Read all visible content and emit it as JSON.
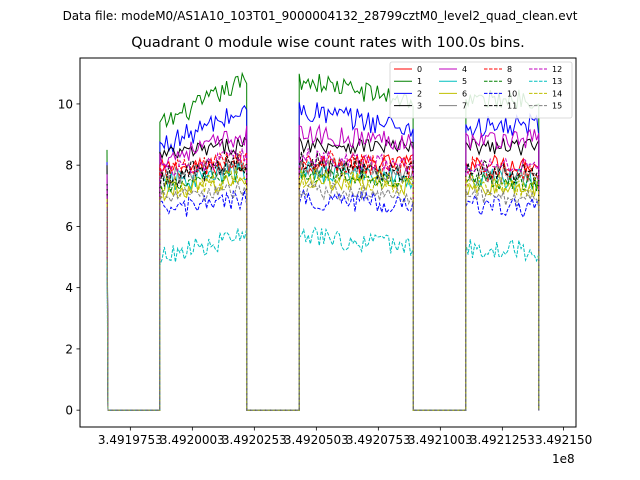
{
  "chart_data": {
    "type": "line",
    "suptitle": "Data file: modeM0/AS1A10_103T01_9000004132_28799cztM0_level2_quad_clean.evt",
    "title": "Quadrant 0 module wise count rates with 100.0s bins.",
    "xlabel": "",
    "ylabel": "",
    "x_offset_label": "1e8",
    "xlim": [
      3.491955,
      3.492155
    ],
    "ylim": [
      -0.55,
      11.5
    ],
    "x_ticks": [
      3.4919753,
      3.4920003,
      3.4920253,
      3.4920503,
      3.4920753,
      3.4921003,
      3.4921253,
      3.49215
    ],
    "x_tick_labels": [
      "3.4919753",
      "3.4920003",
      "3.4920253",
      "3.4920503",
      "3.4920753",
      "3.4921003",
      "3.4921253",
      "3.492150"
    ],
    "y_ticks": [
      0,
      2,
      4,
      6,
      8,
      10
    ],
    "y_tick_labels": [
      "0",
      "2",
      "4",
      "6",
      "8",
      "10"
    ],
    "legend_position": "top-right",
    "segments": [
      {
        "x_start": 3.4919659,
        "x_end": 3.4919663,
        "kind": "spike"
      },
      {
        "x_start": 3.4919663,
        "x_end": 3.4919872,
        "kind": "gap"
      },
      {
        "x_start": 3.4919872,
        "x_end": 3.4920222,
        "kind": "data"
      },
      {
        "x_start": 3.4920222,
        "x_end": 3.4920434,
        "kind": "gap"
      },
      {
        "x_start": 3.4920434,
        "x_end": 3.4920893,
        "kind": "data"
      },
      {
        "x_start": 3.4920893,
        "x_end": 3.4921106,
        "kind": "gap"
      },
      {
        "x_start": 3.4921106,
        "x_end": 3.49214,
        "kind": "data"
      }
    ],
    "series": [
      {
        "name": "0",
        "color": "#ff0000",
        "dash": "solid",
        "levels": [
          7.9,
          8.0,
          8.1,
          8.0
        ],
        "spike": 7.6
      },
      {
        "name": "1",
        "color": "#008000",
        "dash": "solid",
        "levels": [
          9.3,
          10.8,
          10.1,
          10.2
        ],
        "spike": 8.5
      },
      {
        "name": "2",
        "color": "#0000ff",
        "dash": "solid",
        "levels": [
          8.6,
          9.8,
          9.2,
          9.3
        ],
        "spike": 8.1
      },
      {
        "name": "3",
        "color": "#000000",
        "dash": "solid",
        "levels": [
          8.3,
          8.7,
          8.6,
          8.6
        ],
        "spike": 8.0
      },
      {
        "name": "4",
        "color": "#bf00bf",
        "dash": "solid",
        "levels": [
          8.2,
          9.0,
          8.8,
          8.9
        ],
        "spike": 7.7
      },
      {
        "name": "5",
        "color": "#00bfbf",
        "dash": "solid",
        "levels": [
          7.4,
          7.8,
          7.6,
          7.5
        ],
        "spike": 7.1
      },
      {
        "name": "6",
        "color": "#bfbf00",
        "dash": "solid",
        "levels": [
          7.1,
          7.5,
          7.3,
          7.2
        ],
        "spike": 6.9
      },
      {
        "name": "7",
        "color": "#808080",
        "dash": "solid",
        "levels": [
          7.6,
          8.0,
          7.7,
          7.6
        ],
        "spike": 7.2
      },
      {
        "name": "8",
        "color": "#ff0000",
        "dash": "dashed",
        "levels": [
          7.7,
          8.2,
          7.9,
          7.8
        ],
        "spike": 7.3
      },
      {
        "name": "9",
        "color": "#008000",
        "dash": "dashed",
        "levels": [
          7.3,
          7.7,
          7.5,
          7.4
        ],
        "spike": 7.0
      },
      {
        "name": "10",
        "color": "#0000ff",
        "dash": "dashed",
        "levels": [
          6.5,
          6.9,
          6.7,
          6.6
        ],
        "spike": 6.3
      },
      {
        "name": "11",
        "color": "#000000",
        "dash": "dashed",
        "levels": [
          7.6,
          8.1,
          7.8,
          7.7
        ],
        "spike": 7.4
      },
      {
        "name": "12",
        "color": "#bf00bf",
        "dash": "dashed",
        "levels": [
          7.8,
          8.3,
          8.0,
          8.0
        ],
        "spike": 7.5
      },
      {
        "name": "13",
        "color": "#00bfbf",
        "dash": "dashed",
        "levels": [
          5.0,
          5.7,
          5.3,
          5.2
        ],
        "spike": 4.9
      },
      {
        "name": "14",
        "color": "#bfbf00",
        "dash": "dashed",
        "levels": [
          7.2,
          7.6,
          7.4,
          7.3
        ],
        "spike": 6.9
      },
      {
        "name": "15",
        "color": "#808080",
        "dash": "dashed",
        "levels": [
          6.9,
          7.2,
          7.0,
          6.9
        ],
        "spike": 6.6
      }
    ]
  }
}
